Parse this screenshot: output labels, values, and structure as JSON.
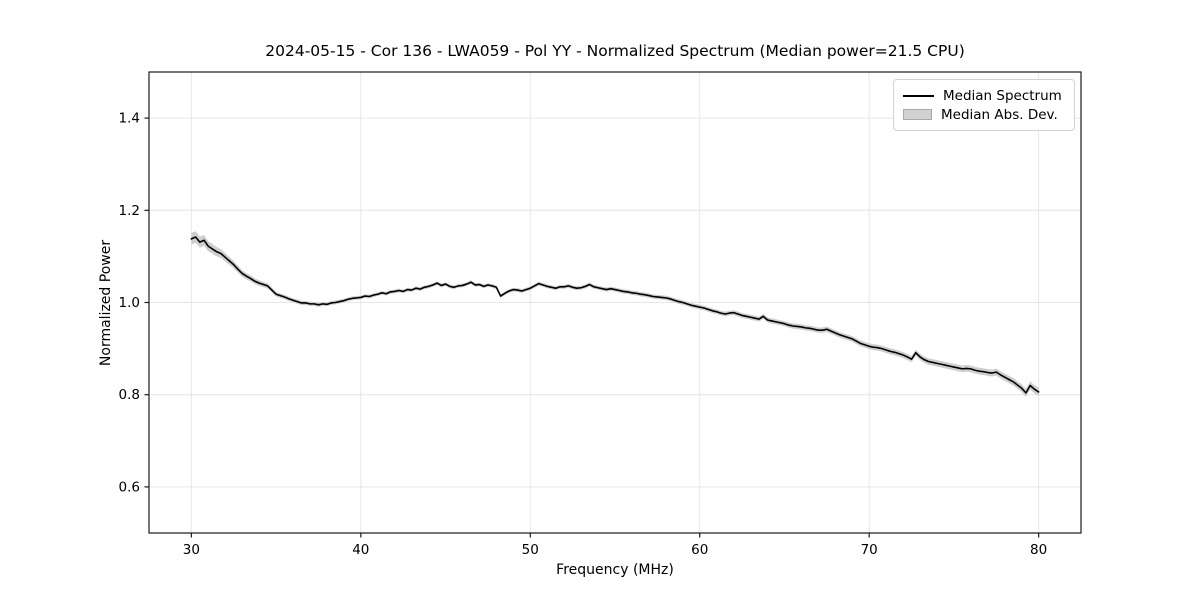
{
  "figure": {
    "background": "#ffffff"
  },
  "chart_data": {
    "type": "line",
    "title": "2024-05-15 - Cor 136 - LWA059 - Pol YY - Normalized Spectrum (Median power=21.5 CPU)",
    "xlabel": "Frequency (MHz)",
    "ylabel": "Normalized Power",
    "xlim": [
      27.5,
      82.5
    ],
    "ylim": [
      0.5,
      1.5
    ],
    "x_ticks": [
      30,
      40,
      50,
      60,
      70,
      80
    ],
    "y_ticks": [
      0.6,
      0.8,
      1.0,
      1.2,
      1.4
    ],
    "grid": true,
    "colors": {
      "line": "#000000",
      "band": "#c9c9c9",
      "grid": "#e6e6e6",
      "spine": "#1a1a1a"
    },
    "legend": {
      "position": "upper right",
      "entries": [
        {
          "label": "Median Spectrum",
          "type": "line",
          "color": "#000000"
        },
        {
          "label": "Median Abs. Dev.",
          "type": "patch",
          "fill": "#d1d1d1",
          "edge": "#a9a9a9"
        }
      ]
    },
    "series": [
      {
        "name": "Median Spectrum",
        "x_start": 30.0,
        "x_step": 0.25,
        "values": [
          1.138,
          1.142,
          1.131,
          1.135,
          1.122,
          1.116,
          1.11,
          1.106,
          1.098,
          1.09,
          1.082,
          1.072,
          1.063,
          1.057,
          1.052,
          1.046,
          1.042,
          1.039,
          1.036,
          1.027,
          1.018,
          1.015,
          1.012,
          1.008,
          1.005,
          1.002,
          0.999,
          0.999,
          0.997,
          0.997,
          0.995,
          0.997,
          0.996,
          0.999,
          1.0,
          1.002,
          1.004,
          1.007,
          1.009,
          1.01,
          1.011,
          1.014,
          1.013,
          1.016,
          1.018,
          1.021,
          1.019,
          1.023,
          1.024,
          1.026,
          1.024,
          1.028,
          1.027,
          1.031,
          1.029,
          1.033,
          1.035,
          1.038,
          1.042,
          1.037,
          1.04,
          1.035,
          1.033,
          1.036,
          1.037,
          1.04,
          1.044,
          1.038,
          1.039,
          1.035,
          1.038,
          1.036,
          1.033,
          1.014,
          1.02,
          1.025,
          1.028,
          1.027,
          1.025,
          1.028,
          1.031,
          1.036,
          1.041,
          1.038,
          1.035,
          1.033,
          1.031,
          1.034,
          1.034,
          1.036,
          1.033,
          1.031,
          1.032,
          1.035,
          1.039,
          1.034,
          1.032,
          1.03,
          1.028,
          1.03,
          1.028,
          1.026,
          1.024,
          1.023,
          1.021,
          1.02,
          1.018,
          1.017,
          1.015,
          1.013,
          1.012,
          1.011,
          1.01,
          1.008,
          1.005,
          1.002,
          1.0,
          0.997,
          0.994,
          0.992,
          0.99,
          0.988,
          0.985,
          0.982,
          0.98,
          0.977,
          0.975,
          0.977,
          0.978,
          0.975,
          0.972,
          0.97,
          0.968,
          0.966,
          0.964,
          0.97,
          0.962,
          0.96,
          0.958,
          0.956,
          0.954,
          0.951,
          0.949,
          0.948,
          0.947,
          0.945,
          0.944,
          0.942,
          0.94,
          0.94,
          0.942,
          0.938,
          0.934,
          0.93,
          0.927,
          0.924,
          0.921,
          0.916,
          0.911,
          0.908,
          0.905,
          0.903,
          0.902,
          0.9,
          0.897,
          0.894,
          0.892,
          0.889,
          0.886,
          0.882,
          0.877,
          0.891,
          0.882,
          0.876,
          0.872,
          0.87,
          0.868,
          0.866,
          0.864,
          0.862,
          0.86,
          0.858,
          0.856,
          0.857,
          0.856,
          0.853,
          0.851,
          0.85,
          0.848,
          0.847,
          0.849,
          0.843,
          0.838,
          0.833,
          0.828,
          0.821,
          0.814,
          0.804,
          0.82,
          0.812,
          0.806
        ]
      },
      {
        "name": "Median Abs. Dev.",
        "representation": "half_width_anchors",
        "anchors": [
          [
            30,
            0.013
          ],
          [
            31,
            0.011
          ],
          [
            32,
            0.009
          ],
          [
            33,
            0.007
          ],
          [
            34,
            0.006
          ],
          [
            35,
            0.005
          ],
          [
            36,
            0.0045
          ],
          [
            40,
            0.004
          ],
          [
            48,
            0.004
          ],
          [
            55,
            0.0045
          ],
          [
            60,
            0.005
          ],
          [
            64,
            0.0055
          ],
          [
            68,
            0.006
          ],
          [
            71,
            0.0065
          ],
          [
            74,
            0.007
          ],
          [
            77,
            0.0075
          ],
          [
            79,
            0.0085
          ],
          [
            80,
            0.009
          ]
        ]
      }
    ]
  }
}
